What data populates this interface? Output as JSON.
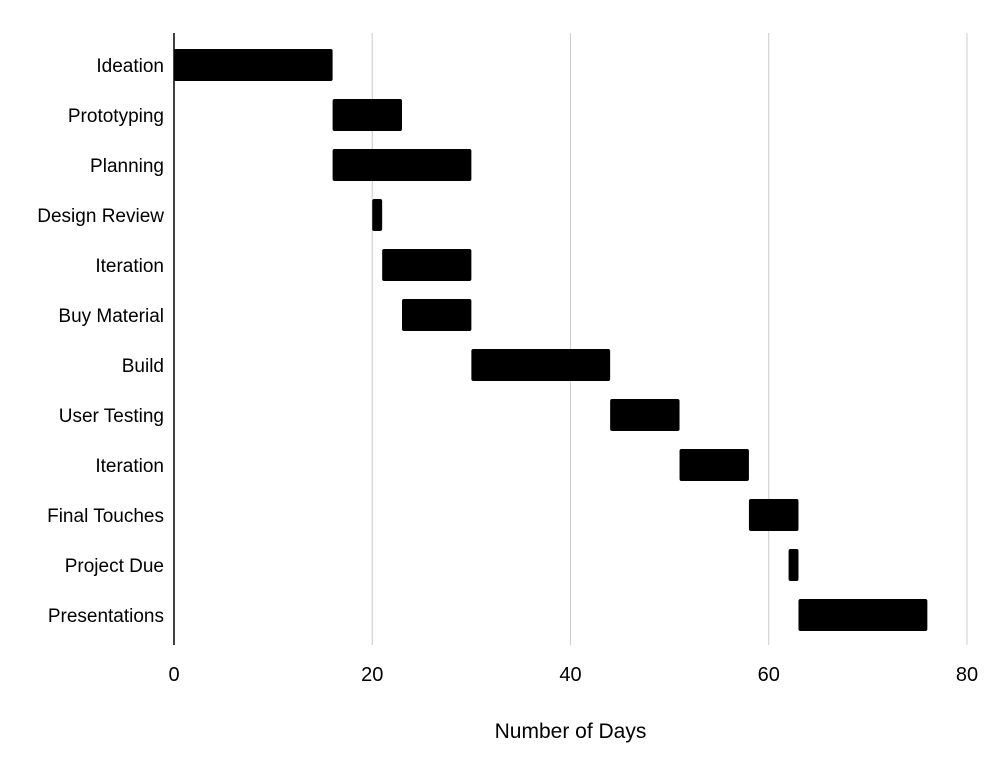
{
  "chart_data": {
    "type": "bar",
    "orientation": "horizontal",
    "variant": "gantt",
    "title": "",
    "xlabel": "Number of Days",
    "ylabel": "",
    "xlim": [
      0,
      80
    ],
    "xticks": [
      0,
      20,
      40,
      60,
      80
    ],
    "grid": "vertical",
    "legend": "none",
    "categories": [
      "Ideation",
      "Prototyping",
      "Planning",
      "Design Review",
      "Iteration",
      "Buy Material",
      "Build",
      "User Testing",
      "Iteration",
      "Final Touches",
      "Project Due",
      "Presentations"
    ],
    "start": [
      0,
      16,
      16,
      20,
      21,
      23,
      30,
      44,
      51,
      58,
      62,
      63
    ],
    "end": [
      16,
      23,
      30,
      21,
      30,
      30,
      44,
      51,
      58,
      63,
      63,
      76
    ],
    "colors": {
      "bar": "#000000",
      "grid": "#cccccc",
      "axis": "#000000"
    }
  }
}
